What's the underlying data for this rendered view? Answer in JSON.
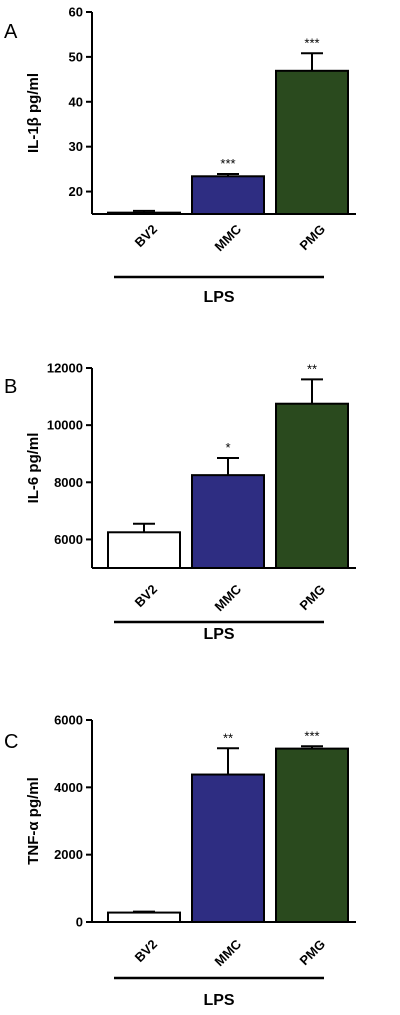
{
  "chart_data": [
    {
      "type": "bar",
      "panel": "A",
      "ylabel": "IL-1β pg/ml",
      "categories": [
        "BV2",
        "MMC",
        "PMG"
      ],
      "values": [
        15.3,
        23.4,
        46.9
      ],
      "errors": [
        0.4,
        0.5,
        3.9
      ],
      "significance": [
        "",
        "***",
        "***"
      ],
      "colors": [
        "#ffffff",
        "#2e2d82",
        "#2a4a1e"
      ],
      "group_label": "LPS",
      "ylim": [
        15,
        60
      ],
      "yticks": [
        20,
        30,
        40,
        50,
        60
      ],
      "grid": false
    },
    {
      "type": "bar",
      "panel": "B",
      "ylabel": "IL-6 pg/ml",
      "categories": [
        "BV2",
        "MMC",
        "PMG"
      ],
      "values": [
        6250,
        8250,
        10750
      ],
      "errors": [
        300,
        600,
        850
      ],
      "significance": [
        "",
        "*",
        "**"
      ],
      "colors": [
        "#ffffff",
        "#2e2d82",
        "#2a4a1e"
      ],
      "group_label": "LPS",
      "ylim": [
        5000,
        12000
      ],
      "yticks": [
        6000,
        8000,
        10000,
        12000
      ],
      "grid": false
    },
    {
      "type": "bar",
      "panel": "C",
      "ylabel": "TNF-α pg/ml",
      "categories": [
        "BV2",
        "MMC",
        "PMG"
      ],
      "values": [
        280,
        4380,
        5150
      ],
      "errors": [
        30,
        780,
        70
      ],
      "significance": [
        "",
        "**",
        "***"
      ],
      "colors": [
        "#ffffff",
        "#2e2d82",
        "#2a4a1e"
      ],
      "group_label": "LPS",
      "ylim": [
        0,
        6000
      ],
      "yticks": [
        0,
        2000,
        4000,
        6000
      ],
      "grid": false
    }
  ]
}
